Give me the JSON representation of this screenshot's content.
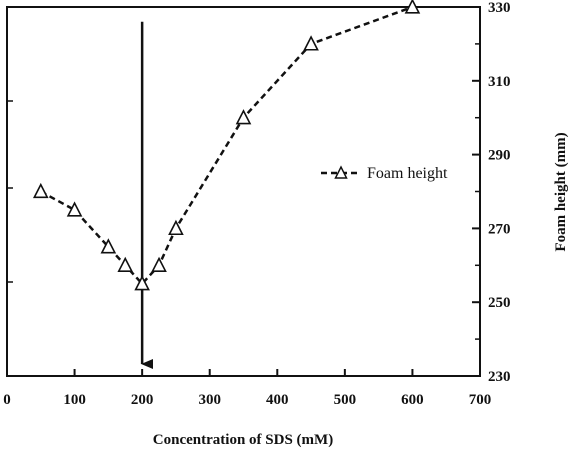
{
  "chart_data": {
    "type": "line",
    "xlabel": "Concentration of SDS (mM)",
    "ylabel": "Foam height (mm)",
    "xlim": [
      0,
      700
    ],
    "ylim": [
      230,
      330
    ],
    "x_ticks": [
      "0",
      "100",
      "200",
      "300",
      "400",
      "500",
      "600",
      "700"
    ],
    "y_ticks": [
      "230",
      "250",
      "270",
      "290",
      "310",
      "330"
    ],
    "y_axis_side": "right",
    "grid": false,
    "legend_position": "right-middle",
    "series": [
      {
        "name": "Foam height",
        "line_style": "dashed",
        "marker": "open-triangle",
        "x": [
          50,
          100,
          150,
          175,
          200,
          225,
          250,
          350,
          450,
          600
        ],
        "y": [
          280,
          275,
          265,
          260,
          255,
          260,
          270,
          300,
          320,
          330
        ]
      }
    ],
    "annotations": [
      {
        "type": "vertical-arrow",
        "x": 200,
        "y_from": 326,
        "y_to": 230
      }
    ],
    "colors": {
      "line": "#111111",
      "marker_fill": "#ffffff",
      "background": "#ffffff"
    }
  }
}
